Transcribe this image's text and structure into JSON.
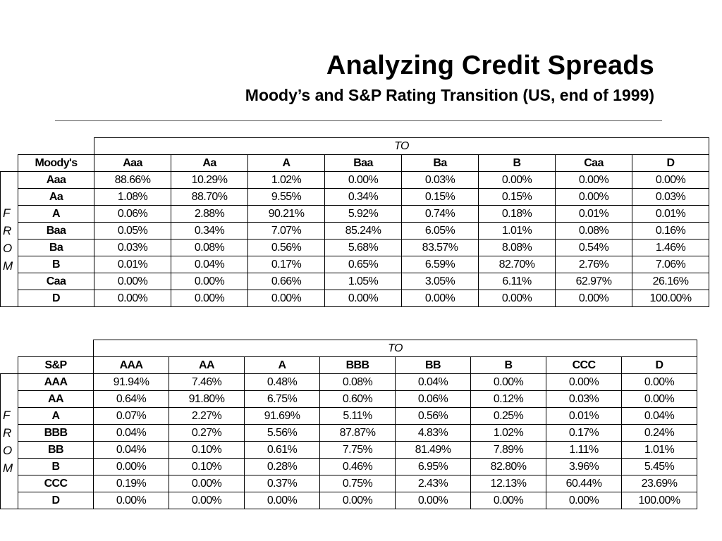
{
  "title": "Analyzing Credit Spreads",
  "subtitle": "Moody’s and S&P Rating Transition (US, end of 1999)",
  "tables": [
    {
      "to_label": "TO",
      "from_letters": [
        "F",
        "R",
        "O",
        "M"
      ],
      "agency": "Moody's",
      "columns": [
        "Aaa",
        "Aa",
        "A",
        "Baa",
        "Ba",
        "B",
        "Caa",
        "D"
      ],
      "rows": [
        {
          "label": "Aaa",
          "values": [
            "88.66%",
            "10.29%",
            "1.02%",
            "0.00%",
            "0.03%",
            "0.00%",
            "0.00%",
            "0.00%"
          ]
        },
        {
          "label": "Aa",
          "values": [
            "1.08%",
            "88.70%",
            "9.55%",
            "0.34%",
            "0.15%",
            "0.15%",
            "0.00%",
            "0.03%"
          ]
        },
        {
          "label": "A",
          "values": [
            "0.06%",
            "2.88%",
            "90.21%",
            "5.92%",
            "0.74%",
            "0.18%",
            "0.01%",
            "0.01%"
          ]
        },
        {
          "label": "Baa",
          "values": [
            "0.05%",
            "0.34%",
            "7.07%",
            "85.24%",
            "6.05%",
            "1.01%",
            "0.08%",
            "0.16%"
          ]
        },
        {
          "label": "Ba",
          "values": [
            "0.03%",
            "0.08%",
            "0.56%",
            "5.68%",
            "83.57%",
            "8.08%",
            "0.54%",
            "1.46%"
          ]
        },
        {
          "label": "B",
          "values": [
            "0.01%",
            "0.04%",
            "0.17%",
            "0.65%",
            "6.59%",
            "82.70%",
            "2.76%",
            "7.06%"
          ]
        },
        {
          "label": "Caa",
          "values": [
            "0.00%",
            "0.00%",
            "0.66%",
            "1.05%",
            "3.05%",
            "6.11%",
            "62.97%",
            "26.16%"
          ]
        },
        {
          "label": "D",
          "values": [
            "0.00%",
            "0.00%",
            "0.00%",
            "0.00%",
            "0.00%",
            "0.00%",
            "0.00%",
            "100.00%"
          ]
        }
      ]
    },
    {
      "to_label": "TO",
      "from_letters": [
        "F",
        "R",
        "O",
        "M"
      ],
      "agency": "S&P",
      "columns": [
        "AAA",
        "AA",
        "A",
        "BBB",
        "BB",
        "B",
        "CCC",
        "D"
      ],
      "rows": [
        {
          "label": "AAA",
          "values": [
            "91.94%",
            "7.46%",
            "0.48%",
            "0.08%",
            "0.04%",
            "0.00%",
            "0.00%",
            "0.00%"
          ]
        },
        {
          "label": "AA",
          "values": [
            "0.64%",
            "91.80%",
            "6.75%",
            "0.60%",
            "0.06%",
            "0.12%",
            "0.03%",
            "0.00%"
          ]
        },
        {
          "label": "A",
          "values": [
            "0.07%",
            "2.27%",
            "91.69%",
            "5.11%",
            "0.56%",
            "0.25%",
            "0.01%",
            "0.04%"
          ]
        },
        {
          "label": "BBB",
          "values": [
            "0.04%",
            "0.27%",
            "5.56%",
            "87.87%",
            "4.83%",
            "1.02%",
            "0.17%",
            "0.24%"
          ]
        },
        {
          "label": "BB",
          "values": [
            "0.04%",
            "0.10%",
            "0.61%",
            "7.75%",
            "81.49%",
            "7.89%",
            "1.11%",
            "1.01%"
          ]
        },
        {
          "label": "B",
          "values": [
            "0.00%",
            "0.10%",
            "0.28%",
            "0.46%",
            "6.95%",
            "82.80%",
            "3.96%",
            "5.45%"
          ]
        },
        {
          "label": "CCC",
          "values": [
            "0.19%",
            "0.00%",
            "0.37%",
            "0.75%",
            "2.43%",
            "12.13%",
            "60.44%",
            "23.69%"
          ]
        },
        {
          "label": "D",
          "values": [
            "0.00%",
            "0.00%",
            "0.00%",
            "0.00%",
            "0.00%",
            "0.00%",
            "0.00%",
            "100.00%"
          ]
        }
      ]
    }
  ]
}
